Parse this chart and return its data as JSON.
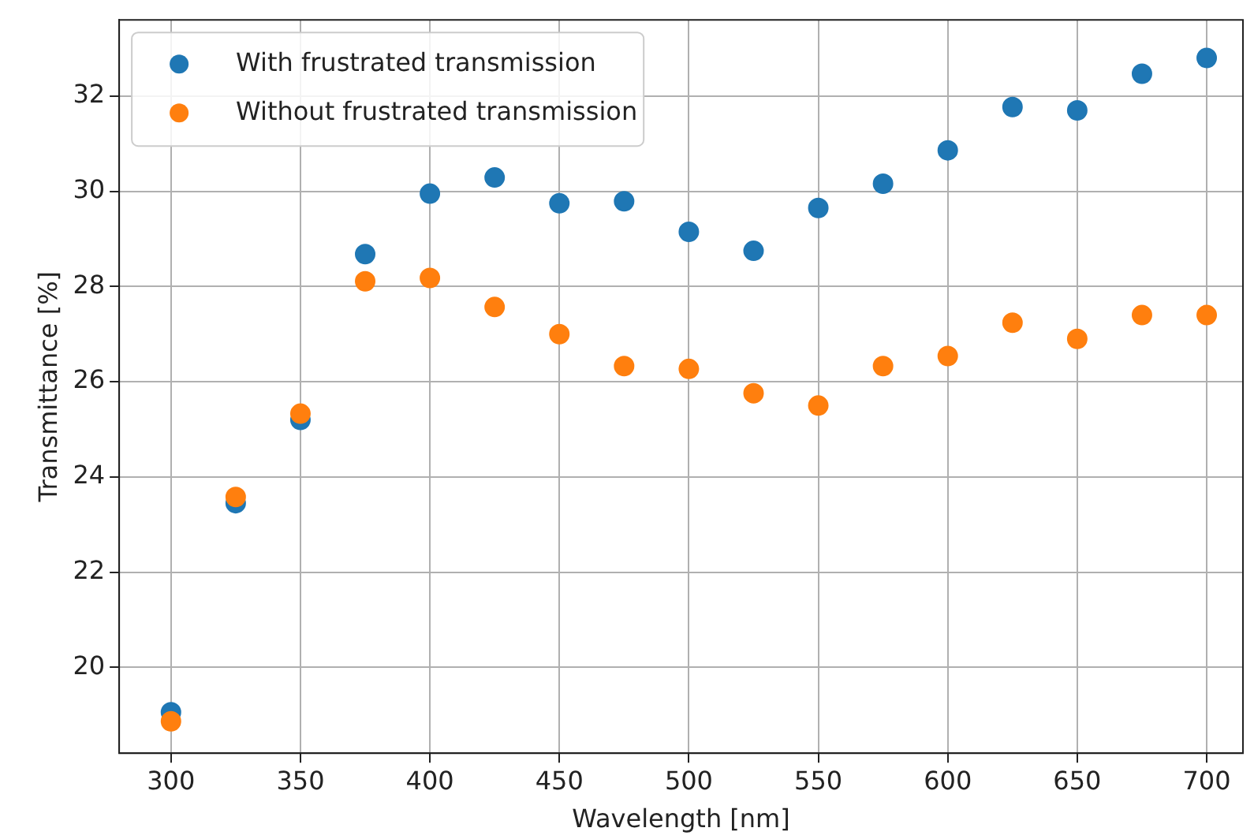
{
  "chart_data": {
    "type": "scatter",
    "xlabel": "Wavelength [nm]",
    "ylabel": "Transmittance [%]",
    "x": [
      300,
      325,
      350,
      375,
      400,
      425,
      450,
      475,
      500,
      525,
      550,
      575,
      600,
      625,
      650,
      675,
      700
    ],
    "series": [
      {
        "name": "With frustrated transmission",
        "color": "#1f77b4",
        "values": [
          19.06,
          23.45,
          25.2,
          28.68,
          29.95,
          30.29,
          29.75,
          29.79,
          29.15,
          28.75,
          29.65,
          30.16,
          30.86,
          31.77,
          31.7,
          32.47,
          32.8
        ]
      },
      {
        "name": "Without frustrated transmission",
        "color": "#ff7f0e",
        "values": [
          18.87,
          23.58,
          25.33,
          28.11,
          28.18,
          27.57,
          27.0,
          26.33,
          26.27,
          25.76,
          25.5,
          26.33,
          26.54,
          27.24,
          26.9,
          27.4,
          27.4
        ]
      }
    ],
    "xlim": [
      280,
      714
    ],
    "xticks": [
      300,
      350,
      400,
      450,
      500,
      550,
      600,
      650,
      700
    ],
    "ylim": [
      18.2,
      33.6
    ],
    "yticks": [
      20,
      22,
      24,
      26,
      28,
      30,
      32
    ],
    "grid": true,
    "legend": "top left",
    "marker": "circle"
  }
}
